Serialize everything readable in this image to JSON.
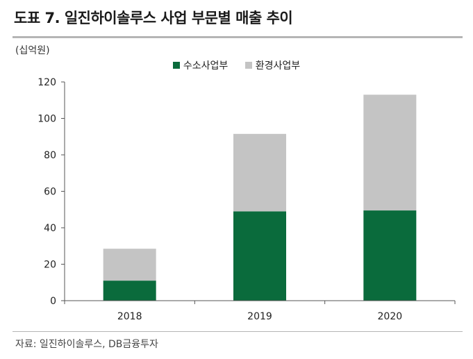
{
  "title": "도표 7. 일진하이솔루스 사업 부문별 매출 추이",
  "unit": "(십억원)",
  "source": "자료:  일진하이솔루스, DB금융투자",
  "colors": {
    "hydrogen": "#0a6b3c",
    "environment": "#c4c4c4"
  },
  "chart_data": {
    "type": "bar",
    "stacked": true,
    "categories": [
      "2018",
      "2019",
      "2020"
    ],
    "series": [
      {
        "name": "수소사업부",
        "values": [
          11,
          49,
          49.5
        ]
      },
      {
        "name": "환경사업부",
        "values": [
          17.5,
          42.5,
          63.5
        ]
      }
    ],
    "ylim": [
      0,
      120
    ],
    "yticks": [
      "0",
      "20",
      "40",
      "60",
      "80",
      "100",
      "120"
    ],
    "legend": "top-center",
    "grid": false
  }
}
